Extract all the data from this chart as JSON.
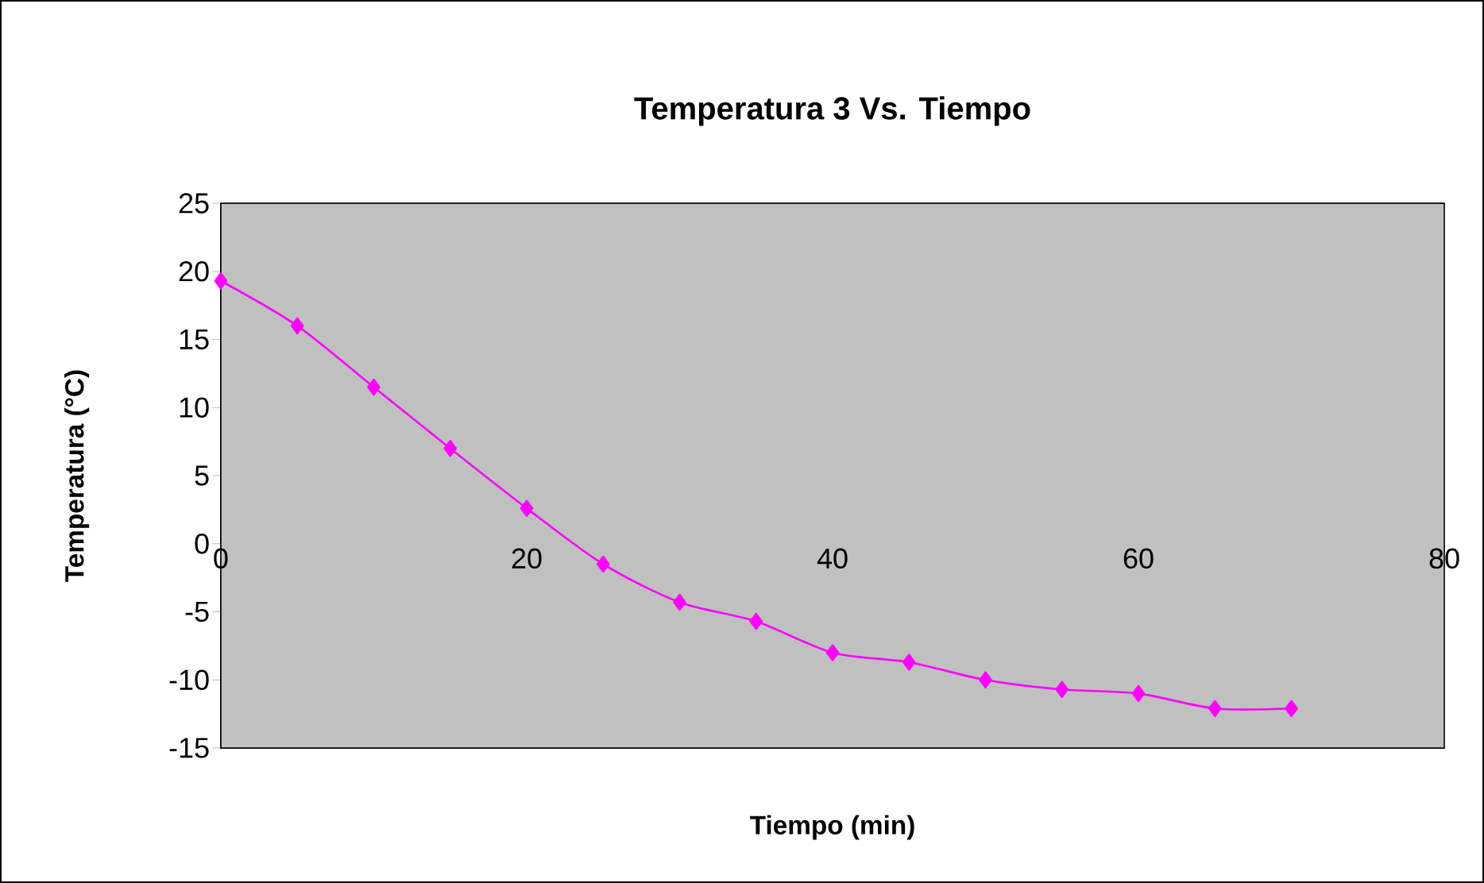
{
  "chart_data": {
    "type": "line",
    "title": "Temperatura 3 Vs. Tiempo",
    "xlabel": "Tiempo (min)",
    "ylabel": "Temperatura (°C)",
    "x": [
      0,
      5,
      10,
      15,
      20,
      25,
      30,
      35,
      40,
      45,
      50,
      55,
      60,
      65,
      70
    ],
    "series": [
      {
        "color": "#ff00ff",
        "values": [
          19.3,
          16.0,
          11.5,
          7.0,
          2.6,
          -1.5,
          -4.3,
          -5.7,
          -8.0,
          -8.7,
          -10.0,
          -10.7,
          -11.0,
          -12.1,
          -12.1
        ]
      }
    ],
    "xlim": [
      0,
      80
    ],
    "ylim": [
      -15,
      25
    ],
    "xticks": [
      0,
      20,
      40,
      60,
      80
    ],
    "yticks": [
      -15,
      -10,
      -5,
      0,
      5,
      10,
      15,
      20,
      25
    ],
    "grid": "y",
    "marker": "diamond",
    "line_style": "solid"
  }
}
